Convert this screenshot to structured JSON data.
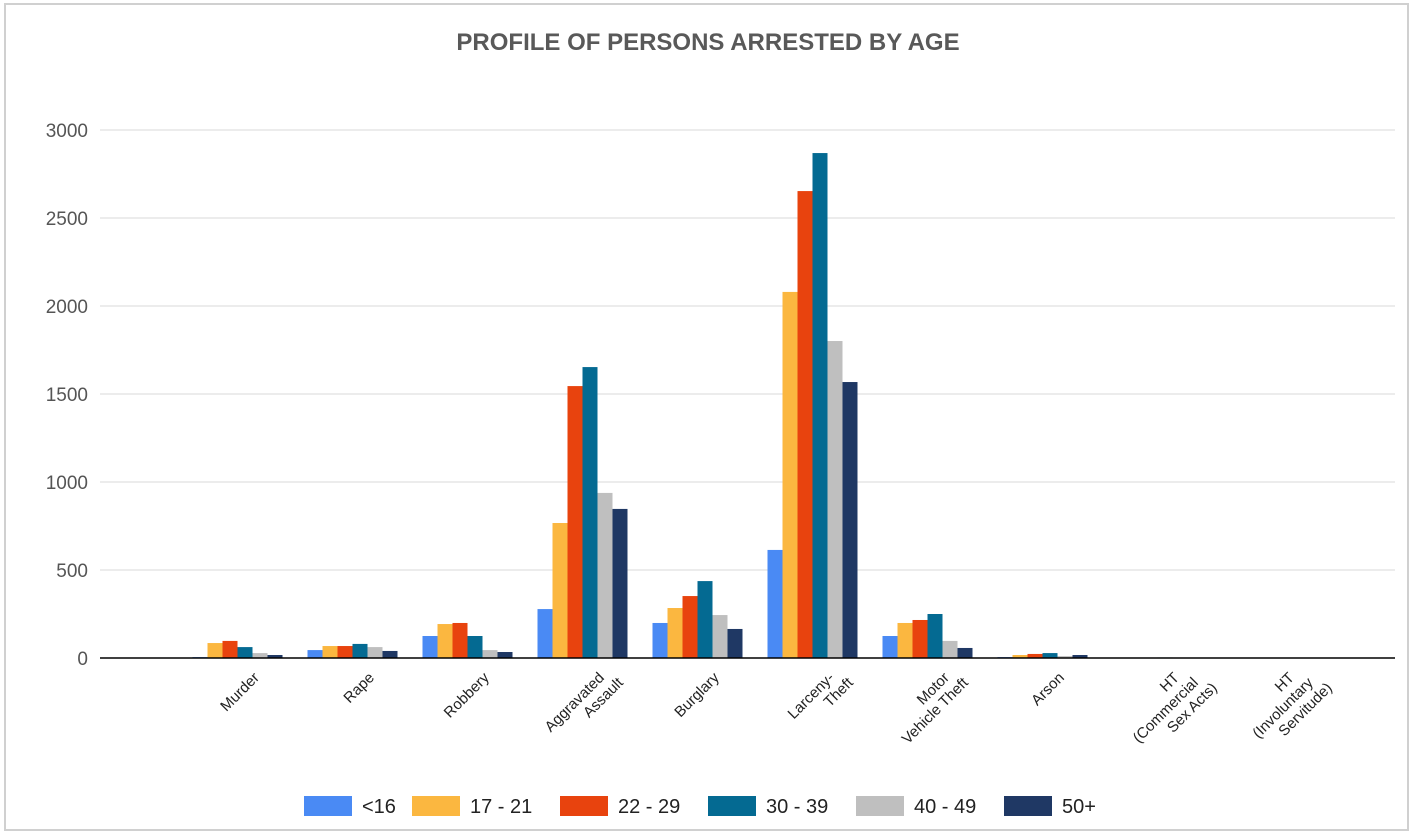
{
  "chart_data": {
    "type": "bar",
    "title": "PROFILE OF PERSONS ARRESTED BY AGE",
    "categories": [
      "Murder",
      "Rape",
      "Robbery",
      "Aggravated\nAssault",
      "Burglary",
      "Larceny-\nTheft",
      "Motor\nVehicle Theft",
      "Arson",
      "HT\n(Commercial\nSex Acts)",
      "HT\n(Involuntary\nServitude)"
    ],
    "series": [
      {
        "name": "<16",
        "color": "#4a8af4",
        "values": [
          5,
          45,
          125,
          278,
          199,
          614,
          125,
          5,
          0,
          0
        ]
      },
      {
        "name": "17 - 21",
        "color": "#fbb740",
        "values": [
          85,
          68,
          193,
          767,
          284,
          2080,
          199,
          17,
          1,
          0
        ]
      },
      {
        "name": "22 - 29",
        "color": "#e8430e",
        "values": [
          97,
          68,
          199,
          1545,
          352,
          2653,
          216,
          23,
          2,
          0
        ]
      },
      {
        "name": "30 - 39",
        "color": "#046a92",
        "values": [
          62,
          80,
          125,
          1653,
          437,
          2869,
          250,
          28,
          3,
          0
        ]
      },
      {
        "name": "40 - 49",
        "color": "#bfbfbf",
        "values": [
          28,
          62,
          45,
          938,
          244,
          1801,
          97,
          11,
          1,
          0
        ]
      },
      {
        "name": "50+",
        "color": "#1f3864",
        "values": [
          17,
          40,
          34,
          847,
          165,
          1568,
          57,
          17,
          0,
          0
        ]
      }
    ],
    "ylim": [
      0,
      3000
    ],
    "yticks": [
      0,
      500,
      1000,
      1500,
      2000,
      2500,
      3000
    ],
    "grid": true,
    "legend": "bottom"
  }
}
